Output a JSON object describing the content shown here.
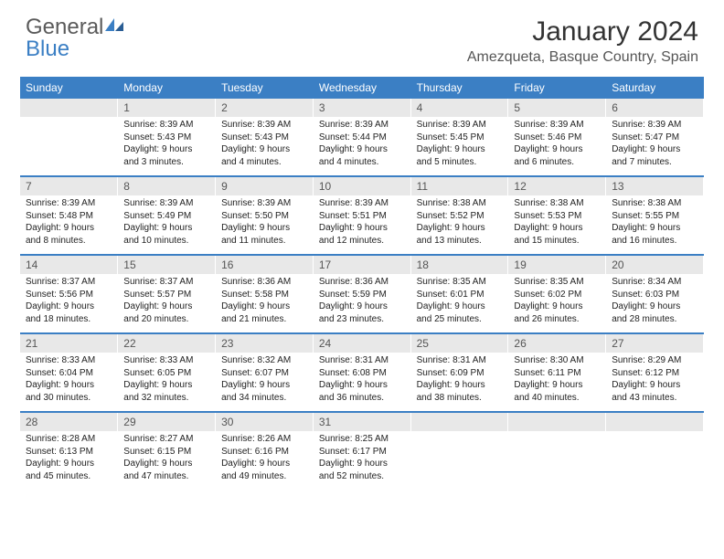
{
  "logo": {
    "text1": "General",
    "text2": "Blue"
  },
  "title": "January 2024",
  "location": "Amezqueta, Basque Country, Spain",
  "colors": {
    "header_bg": "#3b7fc4",
    "daynum_bg": "#e8e8e8",
    "text": "#222222",
    "logo_gray": "#5a5a5a",
    "logo_blue": "#3b7fc4"
  },
  "day_headers": [
    "Sunday",
    "Monday",
    "Tuesday",
    "Wednesday",
    "Thursday",
    "Friday",
    "Saturday"
  ],
  "weeks": [
    [
      null,
      {
        "n": "1",
        "sr": "Sunrise: 8:39 AM",
        "ss": "Sunset: 5:43 PM",
        "d1": "Daylight: 9 hours",
        "d2": "and 3 minutes."
      },
      {
        "n": "2",
        "sr": "Sunrise: 8:39 AM",
        "ss": "Sunset: 5:43 PM",
        "d1": "Daylight: 9 hours",
        "d2": "and 4 minutes."
      },
      {
        "n": "3",
        "sr": "Sunrise: 8:39 AM",
        "ss": "Sunset: 5:44 PM",
        "d1": "Daylight: 9 hours",
        "d2": "and 4 minutes."
      },
      {
        "n": "4",
        "sr": "Sunrise: 8:39 AM",
        "ss": "Sunset: 5:45 PM",
        "d1": "Daylight: 9 hours",
        "d2": "and 5 minutes."
      },
      {
        "n": "5",
        "sr": "Sunrise: 8:39 AM",
        "ss": "Sunset: 5:46 PM",
        "d1": "Daylight: 9 hours",
        "d2": "and 6 minutes."
      },
      {
        "n": "6",
        "sr": "Sunrise: 8:39 AM",
        "ss": "Sunset: 5:47 PM",
        "d1": "Daylight: 9 hours",
        "d2": "and 7 minutes."
      }
    ],
    [
      {
        "n": "7",
        "sr": "Sunrise: 8:39 AM",
        "ss": "Sunset: 5:48 PM",
        "d1": "Daylight: 9 hours",
        "d2": "and 8 minutes."
      },
      {
        "n": "8",
        "sr": "Sunrise: 8:39 AM",
        "ss": "Sunset: 5:49 PM",
        "d1": "Daylight: 9 hours",
        "d2": "and 10 minutes."
      },
      {
        "n": "9",
        "sr": "Sunrise: 8:39 AM",
        "ss": "Sunset: 5:50 PM",
        "d1": "Daylight: 9 hours",
        "d2": "and 11 minutes."
      },
      {
        "n": "10",
        "sr": "Sunrise: 8:39 AM",
        "ss": "Sunset: 5:51 PM",
        "d1": "Daylight: 9 hours",
        "d2": "and 12 minutes."
      },
      {
        "n": "11",
        "sr": "Sunrise: 8:38 AM",
        "ss": "Sunset: 5:52 PM",
        "d1": "Daylight: 9 hours",
        "d2": "and 13 minutes."
      },
      {
        "n": "12",
        "sr": "Sunrise: 8:38 AM",
        "ss": "Sunset: 5:53 PM",
        "d1": "Daylight: 9 hours",
        "d2": "and 15 minutes."
      },
      {
        "n": "13",
        "sr": "Sunrise: 8:38 AM",
        "ss": "Sunset: 5:55 PM",
        "d1": "Daylight: 9 hours",
        "d2": "and 16 minutes."
      }
    ],
    [
      {
        "n": "14",
        "sr": "Sunrise: 8:37 AM",
        "ss": "Sunset: 5:56 PM",
        "d1": "Daylight: 9 hours",
        "d2": "and 18 minutes."
      },
      {
        "n": "15",
        "sr": "Sunrise: 8:37 AM",
        "ss": "Sunset: 5:57 PM",
        "d1": "Daylight: 9 hours",
        "d2": "and 20 minutes."
      },
      {
        "n": "16",
        "sr": "Sunrise: 8:36 AM",
        "ss": "Sunset: 5:58 PM",
        "d1": "Daylight: 9 hours",
        "d2": "and 21 minutes."
      },
      {
        "n": "17",
        "sr": "Sunrise: 8:36 AM",
        "ss": "Sunset: 5:59 PM",
        "d1": "Daylight: 9 hours",
        "d2": "and 23 minutes."
      },
      {
        "n": "18",
        "sr": "Sunrise: 8:35 AM",
        "ss": "Sunset: 6:01 PM",
        "d1": "Daylight: 9 hours",
        "d2": "and 25 minutes."
      },
      {
        "n": "19",
        "sr": "Sunrise: 8:35 AM",
        "ss": "Sunset: 6:02 PM",
        "d1": "Daylight: 9 hours",
        "d2": "and 26 minutes."
      },
      {
        "n": "20",
        "sr": "Sunrise: 8:34 AM",
        "ss": "Sunset: 6:03 PM",
        "d1": "Daylight: 9 hours",
        "d2": "and 28 minutes."
      }
    ],
    [
      {
        "n": "21",
        "sr": "Sunrise: 8:33 AM",
        "ss": "Sunset: 6:04 PM",
        "d1": "Daylight: 9 hours",
        "d2": "and 30 minutes."
      },
      {
        "n": "22",
        "sr": "Sunrise: 8:33 AM",
        "ss": "Sunset: 6:05 PM",
        "d1": "Daylight: 9 hours",
        "d2": "and 32 minutes."
      },
      {
        "n": "23",
        "sr": "Sunrise: 8:32 AM",
        "ss": "Sunset: 6:07 PM",
        "d1": "Daylight: 9 hours",
        "d2": "and 34 minutes."
      },
      {
        "n": "24",
        "sr": "Sunrise: 8:31 AM",
        "ss": "Sunset: 6:08 PM",
        "d1": "Daylight: 9 hours",
        "d2": "and 36 minutes."
      },
      {
        "n": "25",
        "sr": "Sunrise: 8:31 AM",
        "ss": "Sunset: 6:09 PM",
        "d1": "Daylight: 9 hours",
        "d2": "and 38 minutes."
      },
      {
        "n": "26",
        "sr": "Sunrise: 8:30 AM",
        "ss": "Sunset: 6:11 PM",
        "d1": "Daylight: 9 hours",
        "d2": "and 40 minutes."
      },
      {
        "n": "27",
        "sr": "Sunrise: 8:29 AM",
        "ss": "Sunset: 6:12 PM",
        "d1": "Daylight: 9 hours",
        "d2": "and 43 minutes."
      }
    ],
    [
      {
        "n": "28",
        "sr": "Sunrise: 8:28 AM",
        "ss": "Sunset: 6:13 PM",
        "d1": "Daylight: 9 hours",
        "d2": "and 45 minutes."
      },
      {
        "n": "29",
        "sr": "Sunrise: 8:27 AM",
        "ss": "Sunset: 6:15 PM",
        "d1": "Daylight: 9 hours",
        "d2": "and 47 minutes."
      },
      {
        "n": "30",
        "sr": "Sunrise: 8:26 AM",
        "ss": "Sunset: 6:16 PM",
        "d1": "Daylight: 9 hours",
        "d2": "and 49 minutes."
      },
      {
        "n": "31",
        "sr": "Sunrise: 8:25 AM",
        "ss": "Sunset: 6:17 PM",
        "d1": "Daylight: 9 hours",
        "d2": "and 52 minutes."
      },
      null,
      null,
      null
    ]
  ]
}
